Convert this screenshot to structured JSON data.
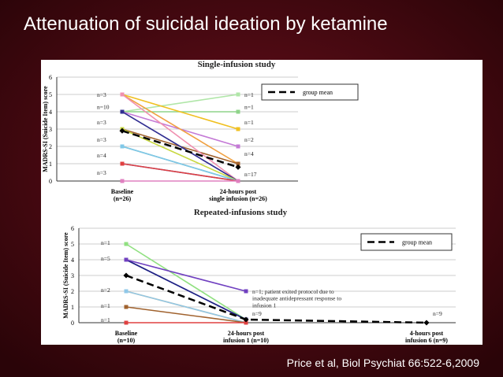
{
  "title": "Attenuation of suicidal ideation by ketamine",
  "citation": "Price et al, Biol Psychiat 66:522-6,2009",
  "chart_data": [
    {
      "type": "line",
      "title": "Single-infusion study",
      "y_label": "MADRS-SI (Suicide Item) score",
      "categories": [
        "Baseline\n(n=26)",
        "24-hours post\nsingle infusion (n=26)"
      ],
      "ylim": [
        0,
        6
      ],
      "yticks": [
        0,
        1,
        2,
        3,
        4,
        5,
        6
      ],
      "grid": true,
      "legend": "upper right",
      "series": [
        {
          "color": "#b0e6a8",
          "values": [
            4,
            5
          ]
        },
        {
          "color": "#8fd48a",
          "values": [
            4,
            4
          ]
        },
        {
          "color": "#f0c020",
          "values": [
            5,
            3
          ]
        },
        {
          "color": "#c47ad6",
          "values": [
            4,
            2
          ]
        },
        {
          "color": "#f0a040",
          "values": [
            5,
            1
          ]
        },
        {
          "color": "#a0622e",
          "values": [
            3,
            1
          ]
        },
        {
          "color": "#f090b0",
          "values": [
            5,
            0
          ]
        },
        {
          "color": "#8060c0",
          "values": [
            4,
            0
          ]
        },
        {
          "color": "#303090",
          "values": [
            4,
            0
          ]
        },
        {
          "color": "#c8d840",
          "values": [
            3,
            0
          ]
        },
        {
          "color": "#40a0a0",
          "values": [
            2,
            0
          ]
        },
        {
          "color": "#80c8e8",
          "values": [
            2,
            0
          ]
        },
        {
          "color": "#3050d0",
          "values": [
            1,
            0
          ]
        },
        {
          "color": "#e04040",
          "values": [
            1,
            0
          ]
        },
        {
          "color": "#e080c0",
          "values": [
            0,
            0
          ]
        },
        {
          "name": "group mean",
          "color": "#000000",
          "dash": true,
          "values": [
            2.9,
            0.8
          ]
        }
      ],
      "annotations": [
        {
          "text": "n=3",
          "category": 0,
          "y": 5
        },
        {
          "text": "n=10",
          "category": 0,
          "y": 4.3
        },
        {
          "text": "n=3",
          "category": 0,
          "y": 3.4
        },
        {
          "text": "n=3",
          "category": 0,
          "y": 2.4
        },
        {
          "text": "n=4",
          "category": 0,
          "y": 1.5
        },
        {
          "text": "n=3",
          "category": 0,
          "y": 0.5
        },
        {
          "text": "n=1",
          "category": 1,
          "y": 5
        },
        {
          "text": "n=1",
          "category": 1,
          "y": 4.3
        },
        {
          "text": "n=1",
          "category": 1,
          "y": 3.4
        },
        {
          "text": "n=2",
          "category": 1,
          "y": 2.4
        },
        {
          "text": "n=4",
          "category": 1,
          "y": 1.6
        },
        {
          "text": "n=17",
          "category": 1,
          "y": 0.4
        }
      ]
    },
    {
      "type": "line",
      "title": "Repeated-infusions study",
      "y_label": "MADRS-SI (Suicide Item) score",
      "categories": [
        "Baseline\n(n=10)",
        "24-hours post\ninfusion 1 (n=10)",
        "4-hours post\ninfusion 6 (n=9)"
      ],
      "ylim": [
        0,
        6
      ],
      "yticks": [
        0,
        1,
        2,
        3,
        4,
        5,
        6
      ],
      "grid": true,
      "legend": "upper right",
      "series": [
        {
          "color": "#90e080",
          "values": [
            5,
            0.2,
            null
          ]
        },
        {
          "color": "#3050d0",
          "values": [
            4,
            0.2,
            null
          ]
        },
        {
          "color": "#202080",
          "values": [
            4,
            0.2,
            null
          ]
        },
        {
          "color": "#7040c0",
          "values": [
            4,
            2,
            null
          ]
        },
        {
          "color": "#f0a040",
          "values": [
            2,
            0,
            null
          ]
        },
        {
          "color": "#90c8e8",
          "values": [
            2,
            0,
            null
          ]
        },
        {
          "color": "#a0622e",
          "values": [
            1,
            0,
            null
          ]
        },
        {
          "color": "#e04040",
          "values": [
            0,
            0,
            null
          ]
        },
        {
          "name": "group mean",
          "color": "#000000",
          "dash": true,
          "values": [
            3,
            0.2,
            0
          ]
        }
      ],
      "annotations": [
        {
          "text": "n=1",
          "category": 0,
          "y": 5.1
        },
        {
          "text": "n=5",
          "category": 0,
          "y": 4.1
        },
        {
          "text": "n=2",
          "category": 0,
          "y": 2.1
        },
        {
          "text": "n=1",
          "category": 0,
          "y": 1.1
        },
        {
          "text": "n=1",
          "category": 0,
          "y": 0.2
        },
        {
          "text": "n=1; patient exited protocol due to\ninadequate antidepressant response to\ninfusion 1",
          "category": 1,
          "y": 2
        },
        {
          "text": "n=9",
          "category": 1,
          "y": 0.6
        },
        {
          "text": "n=9",
          "category": 2,
          "y": 0.6
        }
      ]
    }
  ]
}
